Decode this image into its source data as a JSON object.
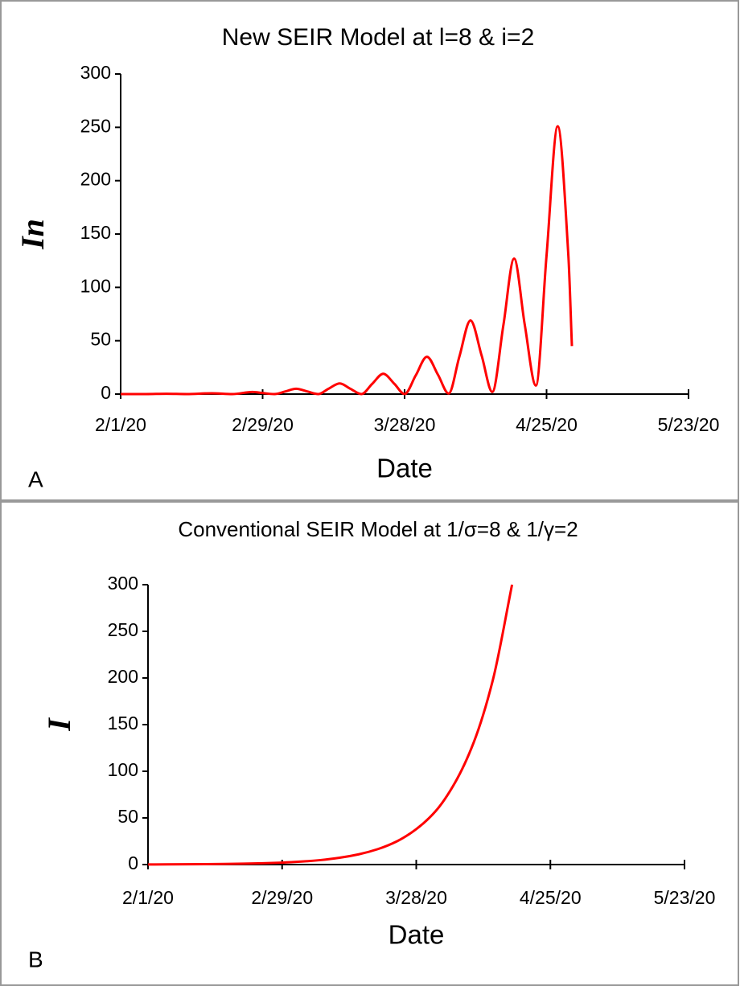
{
  "chart_data": [
    {
      "type": "line",
      "title": "New SEIR Model at l=8 & i=2",
      "x_label": "Date",
      "y_label": "In",
      "panel_label": "A",
      "color": "#ff0000",
      "x": [
        0,
        5,
        9,
        13,
        18,
        22,
        26,
        28,
        30.3,
        32.5,
        34.6,
        36.8,
        39,
        41,
        43.2,
        45.3,
        47.5,
        49.6,
        51.8,
        54,
        56,
        58.2,
        60.4,
        62.6,
        64.7,
        66.8,
        69,
        71.2,
        73.3,
        75.5,
        77.6,
        79.7,
        81.9,
        84,
        86.2,
        88.3,
        89
      ],
      "values": [
        0,
        0,
        0.3,
        0,
        0.8,
        0,
        2,
        1,
        0,
        2.5,
        5,
        2.5,
        0,
        5,
        10,
        5,
        0,
        9.5,
        19,
        9.5,
        0,
        17.5,
        35,
        18,
        0.5,
        35,
        69,
        36,
        2,
        65,
        127,
        65,
        8,
        130,
        251,
        130,
        45
      ],
      "xlim": [
        0,
        112
      ],
      "xticks": [
        {
          "value": 0,
          "label": "2/1/20"
        },
        {
          "value": 28,
          "label": "2/29/20"
        },
        {
          "value": 56,
          "label": "3/28/20"
        },
        {
          "value": 84,
          "label": "4/25/20"
        },
        {
          "value": 112,
          "label": "5/23/20"
        }
      ],
      "ylim": [
        0,
        300
      ],
      "yticks": [
        0,
        50,
        100,
        150,
        200,
        250,
        300
      ],
      "grid": false
    },
    {
      "type": "line",
      "title": "Conventional SEIR Model at 1/σ=8 & 1/γ=2",
      "x_label": "Date",
      "y_label": "I",
      "panel_label": "B",
      "color": "#ff0000",
      "x": [
        0,
        4,
        8,
        12,
        16,
        20,
        24,
        28,
        32,
        36,
        40,
        44,
        48,
        52,
        56,
        60,
        64,
        68,
        72,
        76
      ],
      "values": [
        0.12,
        0.18,
        0.27,
        0.41,
        0.62,
        0.94,
        1.4,
        2.1,
        3.2,
        4.8,
        7.3,
        11,
        16.6,
        25,
        38,
        57,
        87,
        131,
        198,
        300
      ],
      "xlim": [
        0,
        112
      ],
      "xticks": [
        {
          "value": 0,
          "label": "2/1/20"
        },
        {
          "value": 28,
          "label": "2/29/20"
        },
        {
          "value": 56,
          "label": "3/28/20"
        },
        {
          "value": 84,
          "label": "4/25/20"
        },
        {
          "value": 112,
          "label": "5/23/20"
        }
      ],
      "ylim": [
        0,
        300
      ],
      "yticks": [
        0,
        50,
        100,
        150,
        200,
        250,
        300
      ],
      "grid": false
    }
  ]
}
